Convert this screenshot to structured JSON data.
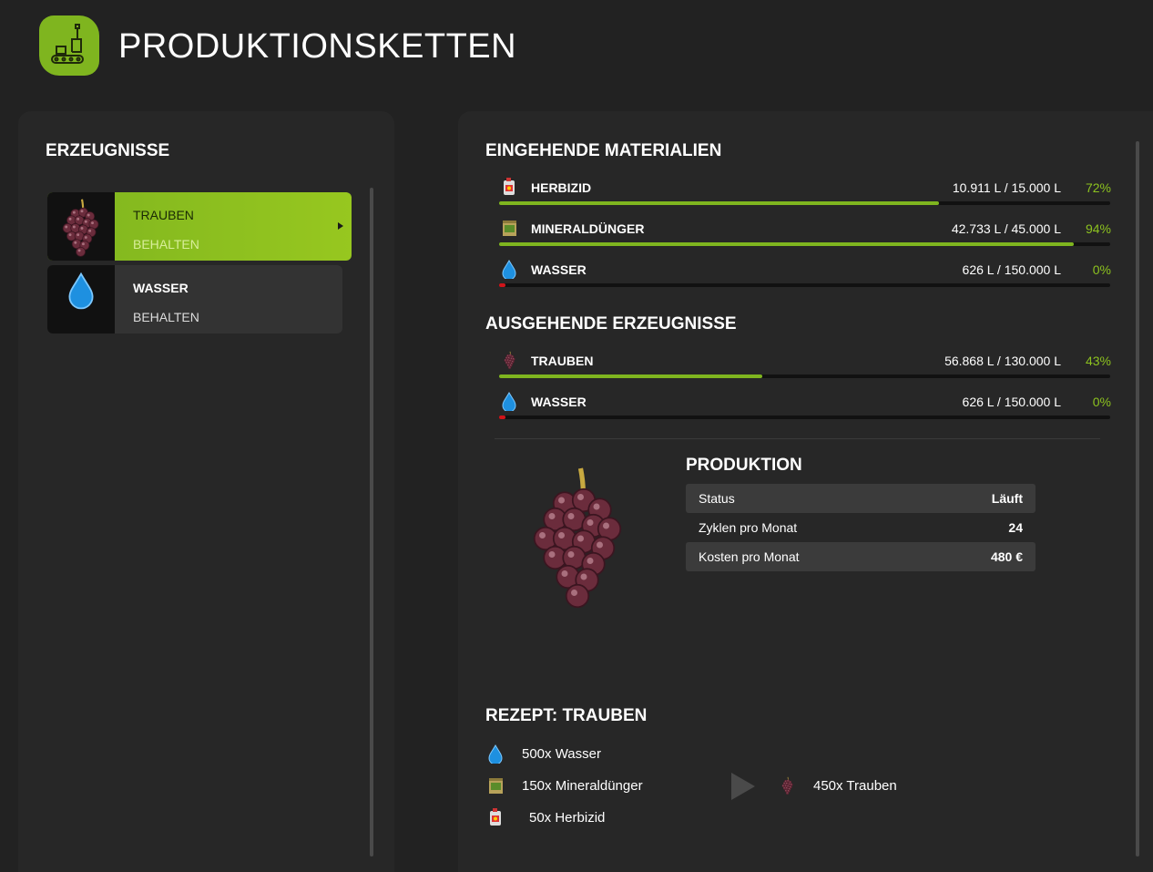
{
  "header": {
    "title": "PRODUKTIONSKETTEN"
  },
  "products": {
    "title": "ERZEUGNISSE",
    "items": [
      {
        "name": "TRAUBEN",
        "mode": "BEHALTEN"
      },
      {
        "name": "WASSER",
        "mode": "BEHALTEN"
      }
    ]
  },
  "incoming": {
    "title": "EINGEHENDE MATERIALIEN",
    "rows": [
      {
        "name": "HERBIZID",
        "amount": "10.911 L / 15.000 L",
        "percent": {
          "value": 72,
          "label": "72%"
        }
      },
      {
        "name": "MINERALDÜNGER",
        "amount": "42.733 L / 45.000 L",
        "percent": {
          "value": 94,
          "label": "94%"
        }
      },
      {
        "name": "WASSER",
        "amount": "626 L / 150.000 L",
        "percent": {
          "value": 0,
          "label": "0%"
        }
      }
    ]
  },
  "outgoing": {
    "title": "AUSGEHENDE ERZEUGNISSE",
    "rows": [
      {
        "name": "TRAUBEN",
        "amount": "56.868 L / 130.000 L",
        "percent": {
          "value": 43,
          "label": "43%"
        }
      },
      {
        "name": "WASSER",
        "amount": "626 L / 150.000 L",
        "percent": {
          "value": 0,
          "label": "0%"
        }
      }
    ]
  },
  "production": {
    "title": "PRODUKTION",
    "rows": [
      [
        "Status",
        "Läuft"
      ],
      [
        "Zyklen pro Monat",
        "24"
      ],
      [
        "Kosten pro Monat",
        "480 €"
      ]
    ]
  },
  "recipe": {
    "title": "REZEPT: TRAUBEN",
    "inputs": [
      "500x Wasser",
      "150x Mineraldünger",
      "50x Herbizid"
    ],
    "outputs": [
      "450x Trauben"
    ]
  }
}
